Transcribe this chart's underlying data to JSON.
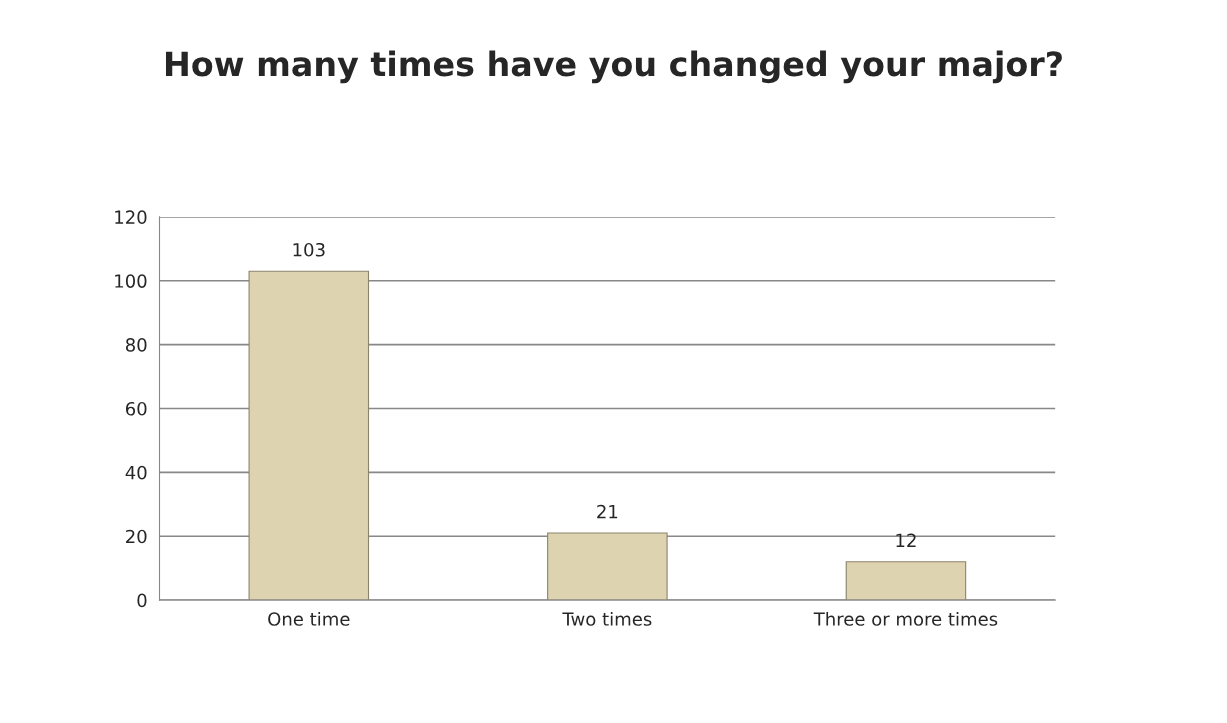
{
  "chart_data": {
    "type": "bar",
    "title": "How many times have you changed your major?",
    "categories": [
      "One time",
      "Two times",
      "Three or more times"
    ],
    "values": [
      103,
      21,
      12
    ],
    "color": "#ded3b0",
    "ylim": [
      0,
      120
    ],
    "yticks": [
      0,
      20,
      40,
      60,
      80,
      100,
      120
    ],
    "grid": "y",
    "data_labels": true
  }
}
